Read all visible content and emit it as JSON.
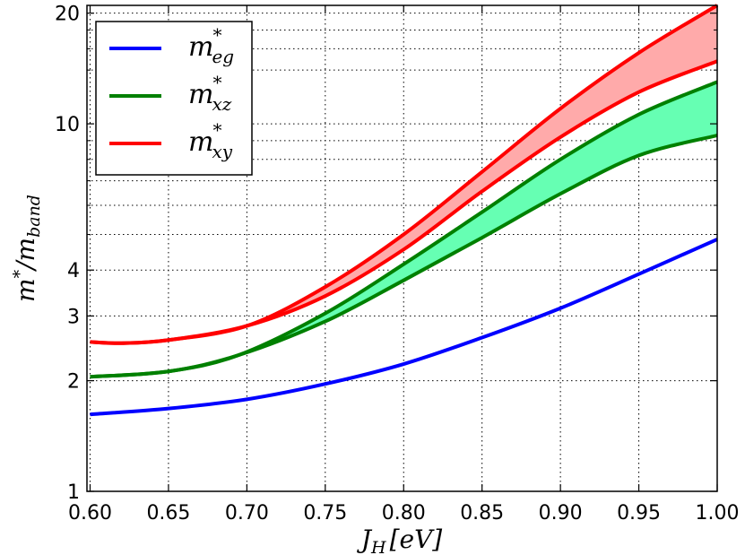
{
  "chart_data": {
    "type": "line",
    "title": "",
    "xlabel_main": "J",
    "xlabel_sub": "H",
    "xlabel_unit": "[eV]",
    "ylabel_main": "m",
    "ylabel_sup": "*",
    "ylabel_slash": "/m",
    "ylabel_sub": "band",
    "xlim": [
      0.598,
      1.0
    ],
    "ylim": [
      1,
      21
    ],
    "y_scale": "log",
    "grid": true,
    "grid_style": "dotted",
    "legend_position": "top-left",
    "x_ticks": [
      "0.60",
      "0.65",
      "0.70",
      "0.75",
      "0.80",
      "0.85",
      "0.90",
      "0.95",
      "1.00"
    ],
    "x_tick_values": [
      0.6,
      0.65,
      0.7,
      0.75,
      0.8,
      0.85,
      0.9,
      0.95,
      1.0
    ],
    "y_ticks": [
      "1",
      "2",
      "3",
      "4",
      "10",
      "20"
    ],
    "y_tick_values": [
      1,
      2,
      3,
      4,
      10,
      20
    ],
    "y_minor_grid": [
      5,
      6,
      7,
      8,
      9,
      14,
      16,
      18
    ],
    "series": [
      {
        "name": "m*_eg",
        "legend_base": "m",
        "legend_sup": "*",
        "legend_sub": "eg",
        "color": "#0000ff",
        "band": false,
        "x": [
          0.6,
          0.65,
          0.7,
          0.75,
          0.8,
          0.85,
          0.9,
          0.95,
          1.0
        ],
        "upper": [
          1.62,
          1.68,
          1.78,
          1.96,
          2.22,
          2.62,
          3.15,
          3.9,
          4.85
        ],
        "lower": [
          1.62,
          1.68,
          1.78,
          1.96,
          2.22,
          2.62,
          3.15,
          3.9,
          4.85
        ]
      },
      {
        "name": "m*_xz",
        "legend_base": "m",
        "legend_sup": "*",
        "legend_sub": "xz",
        "color": "#008000",
        "fill": "#66ffb3",
        "band": true,
        "x": [
          0.6,
          0.65,
          0.695,
          0.75,
          0.8,
          0.85,
          0.9,
          0.95,
          1.0
        ],
        "upper": [
          2.05,
          2.12,
          2.35,
          3.05,
          4.15,
          5.75,
          8.0,
          10.6,
          13.0
        ],
        "lower": [
          2.05,
          2.12,
          2.35,
          2.9,
          3.75,
          4.9,
          6.45,
          8.2,
          9.3
        ]
      },
      {
        "name": "m*_xy",
        "legend_base": "m",
        "legend_sup": "*",
        "legend_sub": "xy",
        "color": "#ff0000",
        "fill": "#ffaaaa",
        "band": true,
        "x": [
          0.6,
          0.62,
          0.65,
          0.7,
          0.75,
          0.8,
          0.85,
          0.9,
          0.95,
          1.0
        ],
        "upper": [
          2.55,
          2.53,
          2.58,
          2.82,
          3.6,
          5.0,
          7.4,
          11.0,
          15.6,
          21.0
        ],
        "lower": [
          2.55,
          2.53,
          2.58,
          2.82,
          3.4,
          4.55,
          6.55,
          9.2,
          12.2,
          14.8
        ]
      }
    ]
  }
}
